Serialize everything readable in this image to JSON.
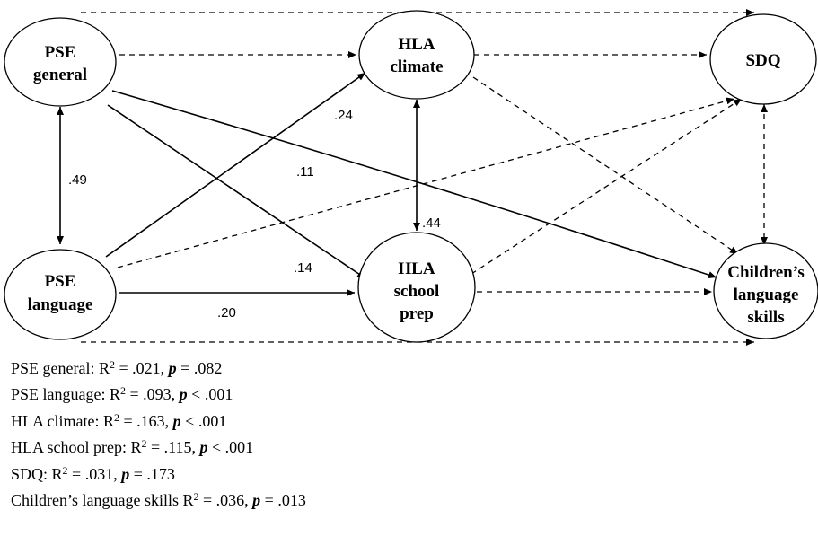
{
  "nodes": {
    "pse_general": [
      "PSE",
      "general"
    ],
    "pse_language": [
      "PSE",
      "language"
    ],
    "hla_climate": [
      "HLA",
      "climate"
    ],
    "hla_school_prep": [
      "HLA",
      "school",
      "prep"
    ],
    "sdq": [
      "SDQ"
    ],
    "children_language": [
      "Children’s",
      "language",
      "skills"
    ]
  },
  "paths": {
    "pse_general_pse_language": ".49",
    "pse_language_hla_climate": ".24",
    "pse_general_children_language": ".11",
    "hla_climate_hla_school_prep": ".44",
    "pse_general_hla_school_prep": ".14",
    "pse_language_hla_school_prep": ".20"
  },
  "fit_stats": [
    {
      "name": "PSE general:",
      "r2": ".021",
      "p_rel": "=",
      "p": ".082"
    },
    {
      "name": "PSE language:",
      "r2": ".093",
      "p_rel": "<",
      "p": ".001"
    },
    {
      "name": "HLA climate:",
      "r2": ".163",
      "p_rel": "<",
      "p": ".001"
    },
    {
      "name": "HLA school prep:",
      "r2": ".115",
      "p_rel": "<",
      "p": ".001"
    },
    {
      "name": "SDQ:",
      "r2": ".031",
      "p_rel": "=",
      "p": ".173"
    },
    {
      "name": "Children’s language skills",
      "r2": ".036",
      "p_rel": "=",
      "p": ".013"
    }
  ]
}
